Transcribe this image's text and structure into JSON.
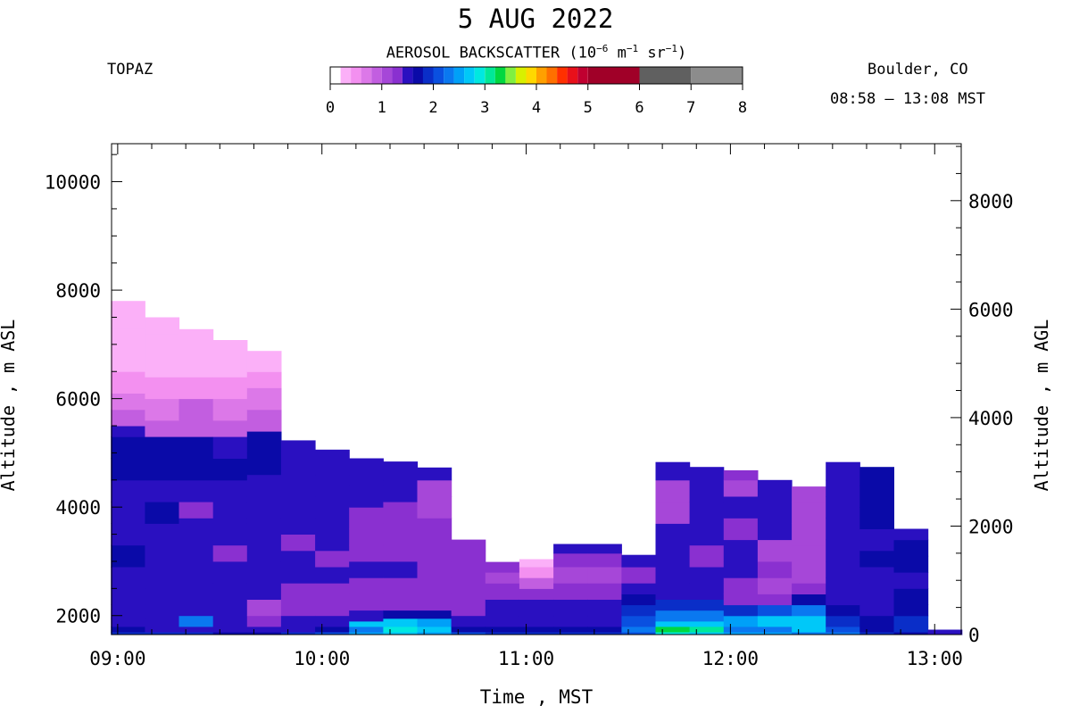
{
  "chart_data": {
    "type": "heatmap",
    "title": "5 AUG 2022",
    "instrument": "TOPAZ",
    "location": "Boulder, CO",
    "time_range": "08:58 – 13:08 MST",
    "colorbar": {
      "title_parts": [
        "AEROSOL BACKSCATTER (10",
        "−6",
        " m",
        "−1",
        " sr",
        "−1",
        ")"
      ],
      "ticks": [
        "0",
        "1",
        "2",
        "3",
        "4",
        "5",
        "6",
        "7",
        "8"
      ],
      "range": [
        0,
        8
      ],
      "colors": [
        "#ffffff",
        "#fbb0f8",
        "#f390f0",
        "#dc78e8",
        "#c25ee0",
        "#a647d8",
        "#8a30d0",
        "#2a10c0",
        "#0a0aa8",
        "#0a2ec8",
        "#0a50e0",
        "#0a78f0",
        "#00a0f8",
        "#00c8f8",
        "#00e8e0",
        "#00e898",
        "#00d840",
        "#80f040",
        "#d8f000",
        "#ffd800",
        "#ffa000",
        "#ff7000",
        "#ff3000",
        "#e8101a",
        "#c00030",
        "#a00028",
        "#606060",
        "#8c8c8c",
        "#c4c4c4"
      ],
      "segment_edges": [
        0,
        0.2,
        0.4,
        0.6,
        0.8,
        1.0,
        1.2,
        1.4,
        1.6,
        1.8,
        2.0,
        2.2,
        2.4,
        2.6,
        2.8,
        3.0,
        3.2,
        3.4,
        3.6,
        3.8,
        4.0,
        4.2,
        4.4,
        4.6,
        4.8,
        5.0,
        6.0,
        7.0,
        8.0
      ]
    },
    "xlabel": "Time , MST",
    "ylabel_left": "Altitude , m ASL",
    "ylabel_right": "Altitude , m AGL",
    "x_ticks": [
      "09:00",
      "10:00",
      "11:00",
      "12:00",
      "13:00"
    ],
    "x_range_hours": [
      8.97,
      13.13
    ],
    "y_left_range": [
      1650,
      10700
    ],
    "y_left_ticks": [
      2000,
      4000,
      6000,
      8000,
      10000
    ],
    "y_right_ticks": [
      0,
      2000,
      4000,
      6000,
      8000
    ],
    "surface_altitude_m": 1650,
    "profiles": [
      {
        "start": "08:58",
        "end": "09:08",
        "top_m": 7800
      },
      {
        "start": "09:08",
        "end": "09:18",
        "top_m": 7500
      },
      {
        "start": "09:18",
        "end": "09:28",
        "top_m": 7280
      },
      {
        "start": "09:28",
        "end": "09:38",
        "top_m": 7080
      },
      {
        "start": "09:38",
        "end": "09:48",
        "top_m": 6880
      },
      {
        "start": "09:48",
        "end": "09:58",
        "top_m": 5230
      },
      {
        "start": "09:58",
        "end": "10:08",
        "top_m": 5060
      },
      {
        "start": "10:08",
        "end": "10:18",
        "top_m": 4900
      },
      {
        "start": "10:18",
        "end": "10:28",
        "top_m": 4840
      },
      {
        "start": "10:28",
        "end": "10:38",
        "top_m": 4730
      },
      {
        "start": "10:38",
        "end": "10:48",
        "top_m": 3400
      },
      {
        "start": "10:48",
        "end": "10:58",
        "top_m": 2990
      },
      {
        "start": "10:58",
        "end": "11:08",
        "top_m": 3040
      },
      {
        "start": "11:08",
        "end": "11:18",
        "top_m": 3320
      },
      {
        "start": "11:18",
        "end": "11:28",
        "top_m": 3320
      },
      {
        "start": "11:28",
        "end": "11:38",
        "top_m": 3120
      },
      {
        "start": "11:38",
        "end": "11:48",
        "top_m": 4830
      },
      {
        "start": "11:48",
        "end": "11:58",
        "top_m": 4740
      },
      {
        "start": "11:58",
        "end": "12:08",
        "top_m": 4680
      },
      {
        "start": "12:08",
        "end": "12:18",
        "top_m": 4500
      },
      {
        "start": "12:18",
        "end": "12:28",
        "top_m": 4380
      },
      {
        "start": "12:28",
        "end": "12:38",
        "top_m": 4830
      },
      {
        "start": "12:38",
        "end": "12:48",
        "top_m": 4740
      },
      {
        "start": "12:48",
        "end": "12:58",
        "top_m": 3600
      },
      {
        "start": "12:58",
        "end": "13:08",
        "top_m": 1740
      }
    ],
    "layers_backscatter": [
      [
        [
          1700,
          1.9
        ],
        [
          1800,
          1.6
        ],
        [
          1950,
          1.4
        ],
        [
          2200,
          1.4
        ],
        [
          2500,
          1.5
        ],
        [
          2900,
          1.5
        ],
        [
          3300,
          1.6
        ],
        [
          3700,
          1.4
        ],
        [
          4100,
          1.5
        ],
        [
          4500,
          1.4
        ],
        [
          4900,
          1.6
        ],
        [
          5300,
          1.7
        ],
        [
          5500,
          1.4
        ],
        [
          5800,
          0.9
        ],
        [
          6100,
          0.7
        ],
        [
          6500,
          0.5
        ],
        [
          6900,
          0.3
        ],
        [
          7300,
          0.2
        ],
        [
          7800,
          0.2
        ]
      ],
      [
        [
          1700,
          1.8
        ],
        [
          1800,
          1.5
        ],
        [
          1950,
          1.4
        ],
        [
          2200,
          1.4
        ],
        [
          2500,
          1.5
        ],
        [
          2900,
          1.4
        ],
        [
          3300,
          1.5
        ],
        [
          3700,
          1.4
        ],
        [
          4100,
          1.6
        ],
        [
          4500,
          1.4
        ],
        [
          4900,
          1.6
        ],
        [
          5300,
          1.7
        ],
        [
          5600,
          0.9
        ],
        [
          6000,
          0.7
        ],
        [
          6400,
          0.5
        ],
        [
          6800,
          0.3
        ],
        [
          7200,
          0.2
        ],
        [
          7500,
          0.2
        ]
      ],
      [
        [
          1700,
          1.8
        ],
        [
          1800,
          1.5
        ],
        [
          2000,
          2.2
        ],
        [
          2300,
          1.4
        ],
        [
          2600,
          1.4
        ],
        [
          3000,
          1.4
        ],
        [
          3400,
          1.5
        ],
        [
          3800,
          1.4
        ],
        [
          4100,
          1.2
        ],
        [
          4500,
          1.4
        ],
        [
          4900,
          1.6
        ],
        [
          5300,
          1.6
        ],
        [
          5600,
          0.9
        ],
        [
          6000,
          0.8
        ],
        [
          6400,
          0.5
        ],
        [
          6800,
          0.3
        ],
        [
          7280,
          0.2
        ]
      ],
      [
        [
          1700,
          1.7
        ],
        [
          1800,
          1.5
        ],
        [
          2000,
          1.4
        ],
        [
          2300,
          1.4
        ],
        [
          2600,
          1.5
        ],
        [
          3000,
          1.4
        ],
        [
          3300,
          1.2
        ],
        [
          3700,
          1.5
        ],
        [
          4100,
          1.4
        ],
        [
          4500,
          1.5
        ],
        [
          4900,
          1.6
        ],
        [
          5300,
          1.4
        ],
        [
          5600,
          0.8
        ],
        [
          6000,
          0.7
        ],
        [
          6400,
          0.5
        ],
        [
          6800,
          0.3
        ],
        [
          7080,
          0.2
        ]
      ],
      [
        [
          1700,
          1.7
        ],
        [
          1800,
          1.5
        ],
        [
          2000,
          1.3
        ],
        [
          2300,
          1.1
        ],
        [
          2600,
          1.4
        ],
        [
          3000,
          1.4
        ],
        [
          3400,
          1.5
        ],
        [
          3800,
          1.4
        ],
        [
          4200,
          1.5
        ],
        [
          4600,
          1.4
        ],
        [
          5000,
          1.7
        ],
        [
          5400,
          1.6
        ],
        [
          5800,
          0.9
        ],
        [
          6200,
          0.6
        ],
        [
          6500,
          0.5
        ],
        [
          6880,
          0.3
        ]
      ],
      [
        [
          1700,
          1.9
        ],
        [
          1800,
          1.5
        ],
        [
          2000,
          1.4
        ],
        [
          2300,
          1.3
        ],
        [
          2600,
          1.2
        ],
        [
          2900,
          1.4
        ],
        [
          3200,
          1.4
        ],
        [
          3500,
          1.3
        ],
        [
          3800,
          1.4
        ],
        [
          4200,
          1.4
        ],
        [
          4600,
          1.5
        ],
        [
          5000,
          1.4
        ],
        [
          5230,
          1.4
        ]
      ],
      [
        [
          1700,
          2.0
        ],
        [
          1800,
          1.7
        ],
        [
          2000,
          1.5
        ],
        [
          2300,
          1.2
        ],
        [
          2600,
          1.2
        ],
        [
          2900,
          1.4
        ],
        [
          3200,
          1.3
        ],
        [
          3500,
          1.4
        ],
        [
          3800,
          1.4
        ],
        [
          4200,
          1.4
        ],
        [
          4600,
          1.4
        ],
        [
          5060,
          1.4
        ]
      ],
      [
        [
          1700,
          2.5
        ],
        [
          1800,
          2.2
        ],
        [
          1900,
          2.6
        ],
        [
          2100,
          1.5
        ],
        [
          2400,
          1.2
        ],
        [
          2700,
          1.3
        ],
        [
          3000,
          1.4
        ],
        [
          3300,
          1.2
        ],
        [
          3600,
          1.3
        ],
        [
          4000,
          1.2
        ],
        [
          4400,
          1.4
        ],
        [
          4900,
          1.4
        ]
      ],
      [
        [
          1700,
          2.6
        ],
        [
          1800,
          2.8
        ],
        [
          1950,
          2.7
        ],
        [
          2100,
          1.7
        ],
        [
          2400,
          1.3
        ],
        [
          2700,
          1.2
        ],
        [
          3000,
          1.4
        ],
        [
          3300,
          1.2
        ],
        [
          3700,
          1.3
        ],
        [
          4100,
          1.3
        ],
        [
          4500,
          1.4
        ],
        [
          4840,
          1.4
        ]
      ],
      [
        [
          1700,
          2.4
        ],
        [
          1800,
          2.7
        ],
        [
          1950,
          2.5
        ],
        [
          2100,
          1.6
        ],
        [
          2400,
          1.3
        ],
        [
          2700,
          1.2
        ],
        [
          3000,
          1.3
        ],
        [
          3400,
          1.2
        ],
        [
          3800,
          1.2
        ],
        [
          4200,
          1.1
        ],
        [
          4500,
          1.0
        ],
        [
          4730,
          1.4
        ]
      ],
      [
        [
          1700,
          2.0
        ],
        [
          1800,
          1.7
        ],
        [
          2000,
          1.5
        ],
        [
          2300,
          1.3
        ],
        [
          2600,
          1.2
        ],
        [
          2900,
          1.3
        ],
        [
          3200,
          1.2
        ],
        [
          3400,
          1.3
        ]
      ],
      [
        [
          1700,
          1.8
        ],
        [
          1800,
          1.6
        ],
        [
          2000,
          1.5
        ],
        [
          2300,
          1.4
        ],
        [
          2600,
          1.2
        ],
        [
          2800,
          1.0
        ],
        [
          2990,
          1.2
        ]
      ],
      [
        [
          1700,
          1.8
        ],
        [
          1800,
          1.6
        ],
        [
          2000,
          1.5
        ],
        [
          2300,
          1.4
        ],
        [
          2500,
          1.2
        ],
        [
          2700,
          0.8
        ],
        [
          2900,
          0.5
        ],
        [
          3040,
          0.3
        ]
      ],
      [
        [
          1700,
          1.8
        ],
        [
          1800,
          1.6
        ],
        [
          2000,
          1.5
        ],
        [
          2300,
          1.4
        ],
        [
          2600,
          1.2
        ],
        [
          2900,
          1.1
        ],
        [
          3150,
          1.2
        ],
        [
          3320,
          1.4
        ]
      ],
      [
        [
          1700,
          1.9
        ],
        [
          1800,
          1.7
        ],
        [
          2000,
          1.5
        ],
        [
          2300,
          1.4
        ],
        [
          2600,
          1.2
        ],
        [
          2900,
          1.1
        ],
        [
          3150,
          1.2
        ],
        [
          3320,
          1.4
        ]
      ],
      [
        [
          1700,
          2.0
        ],
        [
          1800,
          2.2
        ],
        [
          2000,
          2.0
        ],
        [
          2200,
          1.8
        ],
        [
          2400,
          1.6
        ],
        [
          2600,
          1.4
        ],
        [
          2900,
          1.2
        ],
        [
          3120,
          1.4
        ]
      ],
      [
        [
          1700,
          2.9
        ],
        [
          1800,
          3.2
        ],
        [
          1900,
          2.6
        ],
        [
          2100,
          2.2
        ],
        [
          2300,
          1.8
        ],
        [
          2600,
          1.5
        ],
        [
          2900,
          1.4
        ],
        [
          3300,
          1.4
        ],
        [
          3700,
          1.4
        ],
        [
          4100,
          1.1
        ],
        [
          4500,
          1.0
        ],
        [
          4830,
          1.4
        ]
      ],
      [
        [
          1700,
          2.6
        ],
        [
          1800,
          3.0
        ],
        [
          1900,
          2.7
        ],
        [
          2100,
          2.3
        ],
        [
          2300,
          1.8
        ],
        [
          2600,
          1.4
        ],
        [
          2900,
          1.4
        ],
        [
          3300,
          1.3
        ],
        [
          3700,
          1.4
        ],
        [
          4100,
          1.4
        ],
        [
          4500,
          1.4
        ],
        [
          4740,
          1.4
        ]
      ],
      [
        [
          1700,
          2.4
        ],
        [
          1800,
          2.2
        ],
        [
          2000,
          2.4
        ],
        [
          2200,
          1.8
        ],
        [
          2400,
          1.3
        ],
        [
          2700,
          1.2
        ],
        [
          3000,
          1.4
        ],
        [
          3400,
          1.4
        ],
        [
          3800,
          1.3
        ],
        [
          4200,
          1.4
        ],
        [
          4500,
          1.1
        ],
        [
          4680,
          1.2
        ]
      ],
      [
        [
          1700,
          2.5
        ],
        [
          1800,
          2.3
        ],
        [
          2000,
          2.6
        ],
        [
          2200,
          2.0
        ],
        [
          2400,
          1.3
        ],
        [
          2700,
          1.0
        ],
        [
          3000,
          1.2
        ],
        [
          3400,
          1.1
        ],
        [
          3800,
          1.4
        ],
        [
          4200,
          1.4
        ],
        [
          4500,
          1.4
        ]
      ],
      [
        [
          1700,
          2.3
        ],
        [
          1800,
          2.7
        ],
        [
          2000,
          2.6
        ],
        [
          2200,
          2.2
        ],
        [
          2400,
          1.6
        ],
        [
          2600,
          1.2
        ],
        [
          2900,
          1.1
        ],
        [
          3300,
          1.1
        ],
        [
          3700,
          1.1
        ],
        [
          4100,
          1.1
        ],
        [
          4380,
          1.0
        ]
      ],
      [
        [
          1700,
          2.2
        ],
        [
          1800,
          2.0
        ],
        [
          2000,
          1.8
        ],
        [
          2200,
          1.6
        ],
        [
          2400,
          1.4
        ],
        [
          2700,
          1.5
        ],
        [
          3000,
          1.4
        ],
        [
          3400,
          1.4
        ],
        [
          3800,
          1.4
        ],
        [
          4200,
          1.4
        ],
        [
          4500,
          1.5
        ],
        [
          4830,
          1.4
        ]
      ],
      [
        [
          1700,
          1.9
        ],
        [
          1800,
          1.7
        ],
        [
          2000,
          1.6
        ],
        [
          2300,
          1.5
        ],
        [
          2600,
          1.4
        ],
        [
          2900,
          1.5
        ],
        [
          3200,
          1.6
        ],
        [
          3600,
          1.5
        ],
        [
          4000,
          1.6
        ],
        [
          4400,
          1.6
        ],
        [
          4740,
          1.6
        ]
      ],
      [
        [
          1700,
          1.6
        ],
        [
          1800,
          1.8
        ],
        [
          2000,
          1.9
        ],
        [
          2200,
          1.7
        ],
        [
          2500,
          1.6
        ],
        [
          2800,
          1.5
        ],
        [
          3100,
          1.6
        ],
        [
          3400,
          1.7
        ],
        [
          3600,
          1.5
        ]
      ],
      [
        [
          1650,
          1.4
        ],
        [
          1740,
          1.4
        ]
      ]
    ]
  }
}
